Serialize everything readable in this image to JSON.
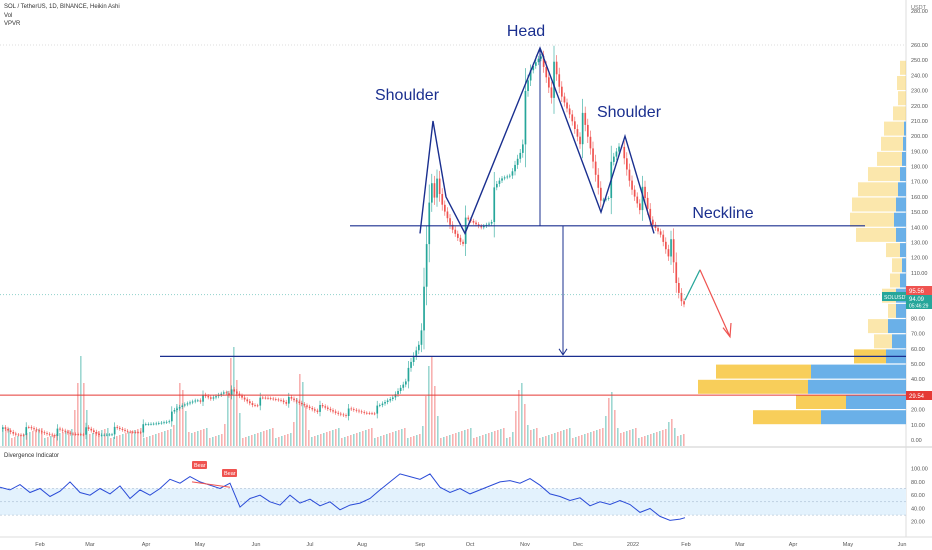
{
  "header": {
    "symbol_line": "SOL / TetherUS, 1D, BINANCE, Heikin Ashi",
    "indicator_1": "Vol",
    "indicator_2": "VPVR",
    "currency": "USDT"
  },
  "annotations": {
    "head": "Head",
    "left_shoulder": "Shoulder",
    "right_shoulder": "Shoulder",
    "neckline": "Neckline"
  },
  "price_tags": {
    "last_price": "95.56",
    "symbol_tag": "SOLUSDT",
    "symbol_price": "94.09",
    "countdown": "05:46:29",
    "red_line": "29.54"
  },
  "oscillator": {
    "title": "Divergence Indicator",
    "bear_label_1": "Bear",
    "bear_label_2": "Bear",
    "y_ticks": [
      "100.00",
      "80.00",
      "60.00",
      "40.00",
      "20.00"
    ]
  },
  "colors": {
    "up": "#26a69a",
    "down": "#ef5350",
    "pattern": "#1a2f8f",
    "red_line": "#e53935",
    "vpvr_up": "#5aa7e6",
    "vpvr_down": "#f7c948",
    "osc_band": "#e3f2fd",
    "osc_line": "#2a4bd7"
  },
  "chart_data": {
    "type": "candlestick",
    "y_ticks": [
      "280.00",
      "260.00",
      "250.00",
      "240.00",
      "230.00",
      "220.00",
      "210.00",
      "200.00",
      "190.00",
      "180.00",
      "170.00",
      "160.00",
      "150.00",
      "140.00",
      "130.00",
      "120.00",
      "110.00",
      "100.00",
      "90.00",
      "80.00",
      "70.00",
      "60.00",
      "50.00",
      "40.00",
      "30.00",
      "20.00",
      "10.00",
      "0.00"
    ],
    "x_ticks": [
      "Feb",
      "Mar",
      "Apr",
      "May",
      "Jun",
      "Jul",
      "Aug",
      "Sep",
      "Oct",
      "Nov",
      "Dec",
      "2022",
      "Feb",
      "Mar",
      "Apr",
      "May",
      "Jun"
    ],
    "price_path": [
      [
        0,
        7
      ],
      [
        14,
        4
      ],
      [
        28,
        6
      ],
      [
        42,
        5
      ],
      [
        56,
        5
      ],
      [
        70,
        4
      ],
      [
        84,
        6
      ],
      [
        98,
        3
      ],
      [
        112,
        6
      ],
      [
        126,
        5
      ],
      [
        140,
        7
      ],
      [
        154,
        10
      ],
      [
        168,
        14
      ],
      [
        182,
        22
      ],
      [
        196,
        28
      ],
      [
        210,
        26
      ],
      [
        224,
        33
      ],
      [
        238,
        28
      ],
      [
        252,
        24
      ],
      [
        266,
        26
      ],
      [
        280,
        27
      ],
      [
        294,
        24
      ],
      [
        308,
        22
      ],
      [
        322,
        20
      ],
      [
        336,
        18
      ],
      [
        350,
        18
      ],
      [
        364,
        18
      ],
      [
        378,
        20
      ],
      [
        392,
        28
      ],
      [
        406,
        42
      ],
      [
        420,
        65
      ],
      [
        430,
        180
      ],
      [
        440,
        150
      ],
      [
        450,
        140
      ],
      [
        460,
        136
      ],
      [
        470,
        138
      ],
      [
        480,
        140
      ],
      [
        490,
        150
      ],
      [
        500,
        165
      ],
      [
        510,
        175
      ],
      [
        520,
        200
      ],
      [
        530,
        235
      ],
      [
        540,
        255
      ],
      [
        550,
        240
      ],
      [
        560,
        220
      ],
      [
        570,
        215
      ],
      [
        580,
        205
      ],
      [
        590,
        185
      ],
      [
        600,
        160
      ],
      [
        610,
        170
      ],
      [
        620,
        190
      ],
      [
        630,
        170
      ],
      [
        640,
        160
      ],
      [
        650,
        140
      ],
      [
        660,
        138
      ],
      [
        670,
        125
      ],
      [
        675,
        100
      ],
      [
        680,
        90
      ],
      [
        685,
        88
      ]
    ],
    "head_shoulders": {
      "pattern_points": [
        [
          420,
          136
        ],
        [
          433,
          210
        ],
        [
          446,
          160
        ],
        [
          465,
          136
        ],
        [
          540,
          258
        ],
        [
          601,
          150
        ],
        [
          625,
          200
        ],
        [
          654,
          136
        ]
      ],
      "neckline": [
        [
          350,
          141
        ],
        [
          865,
          141
        ]
      ],
      "target_line": 55,
      "projection_up": [
        [
          685,
          92
        ],
        [
          700,
          112
        ]
      ],
      "projection_down": [
        [
          700,
          112
        ],
        [
          730,
          68
        ]
      ]
    },
    "vpvr": [
      {
        "price": 245,
        "up": 0,
        "down": 6
      },
      {
        "price": 235,
        "up": 0,
        "down": 9
      },
      {
        "price": 225,
        "up": 0,
        "down": 8
      },
      {
        "price": 215,
        "up": 0,
        "down": 13
      },
      {
        "price": 205,
        "up": 2,
        "down": 20
      },
      {
        "price": 195,
        "up": 3,
        "down": 22
      },
      {
        "price": 185,
        "up": 4,
        "down": 25
      },
      {
        "price": 175,
        "up": 6,
        "down": 32
      },
      {
        "price": 165,
        "up": 8,
        "down": 40
      },
      {
        "price": 155,
        "up": 10,
        "down": 44
      },
      {
        "price": 145,
        "up": 12,
        "down": 44
      },
      {
        "price": 135,
        "up": 10,
        "down": 40
      },
      {
        "price": 125,
        "up": 6,
        "down": 14
      },
      {
        "price": 115,
        "up": 4,
        "down": 10
      },
      {
        "price": 105,
        "up": 6,
        "down": 10
      },
      {
        "price": 95,
        "up": 10,
        "down": 14
      },
      {
        "price": 85,
        "up": 10,
        "down": 8
      },
      {
        "price": 75,
        "up": 18,
        "down": 20
      },
      {
        "price": 65,
        "up": 14,
        "down": 18
      },
      {
        "price": 55,
        "up": 20,
        "down": 32
      },
      {
        "price": 45,
        "up": 95,
        "down": 95
      },
      {
        "price": 35,
        "up": 98,
        "down": 110
      },
      {
        "price": 25,
        "up": 60,
        "down": 50
      },
      {
        "price": 15,
        "up": 85,
        "down": 68
      }
    ],
    "oscillator_series": [
      [
        0,
        72
      ],
      [
        10,
        68
      ],
      [
        20,
        76
      ],
      [
        30,
        64
      ],
      [
        40,
        70
      ],
      [
        50,
        58
      ],
      [
        60,
        66
      ],
      [
        70,
        80
      ],
      [
        80,
        64
      ],
      [
        90,
        60
      ],
      [
        100,
        70
      ],
      [
        110,
        62
      ],
      [
        120,
        74
      ],
      [
        130,
        55
      ],
      [
        140,
        68
      ],
      [
        150,
        60
      ],
      [
        160,
        70
      ],
      [
        170,
        84
      ],
      [
        180,
        78
      ],
      [
        190,
        88
      ],
      [
        200,
        80
      ],
      [
        210,
        75
      ],
      [
        220,
        70
      ],
      [
        230,
        78
      ],
      [
        240,
        42
      ],
      [
        250,
        55
      ],
      [
        260,
        60
      ],
      [
        270,
        50
      ],
      [
        280,
        45
      ],
      [
        290,
        60
      ],
      [
        300,
        48
      ],
      [
        310,
        54
      ],
      [
        320,
        44
      ],
      [
        330,
        50
      ],
      [
        340,
        38
      ],
      [
        350,
        45
      ],
      [
        360,
        48
      ],
      [
        370,
        55
      ],
      [
        380,
        68
      ],
      [
        390,
        80
      ],
      [
        400,
        92
      ],
      [
        410,
        88
      ],
      [
        420,
        84
      ],
      [
        430,
        92
      ],
      [
        440,
        72
      ],
      [
        450,
        64
      ],
      [
        460,
        70
      ],
      [
        470,
        62
      ],
      [
        480,
        68
      ],
      [
        490,
        74
      ],
      [
        500,
        80
      ],
      [
        510,
        82
      ],
      [
        520,
        78
      ],
      [
        530,
        85
      ],
      [
        540,
        75
      ],
      [
        550,
        62
      ],
      [
        560,
        58
      ],
      [
        570,
        52
      ],
      [
        580,
        56
      ],
      [
        590,
        44
      ],
      [
        600,
        50
      ],
      [
        610,
        46
      ],
      [
        620,
        52
      ],
      [
        630,
        46
      ],
      [
        640,
        34
      ],
      [
        650,
        40
      ],
      [
        660,
        28
      ],
      [
        670,
        22
      ],
      [
        680,
        24
      ],
      [
        685,
        26
      ]
    ],
    "oscillator_range": [
      0,
      110
    ],
    "band": [
      30,
      70
    ],
    "volume_spikes": [
      [
        80,
        18
      ],
      [
        180,
        14
      ],
      [
        232,
        22
      ],
      [
        300,
        16
      ],
      [
        430,
        20
      ],
      [
        520,
        14
      ],
      [
        610,
        12
      ],
      [
        670,
        6
      ]
    ]
  }
}
